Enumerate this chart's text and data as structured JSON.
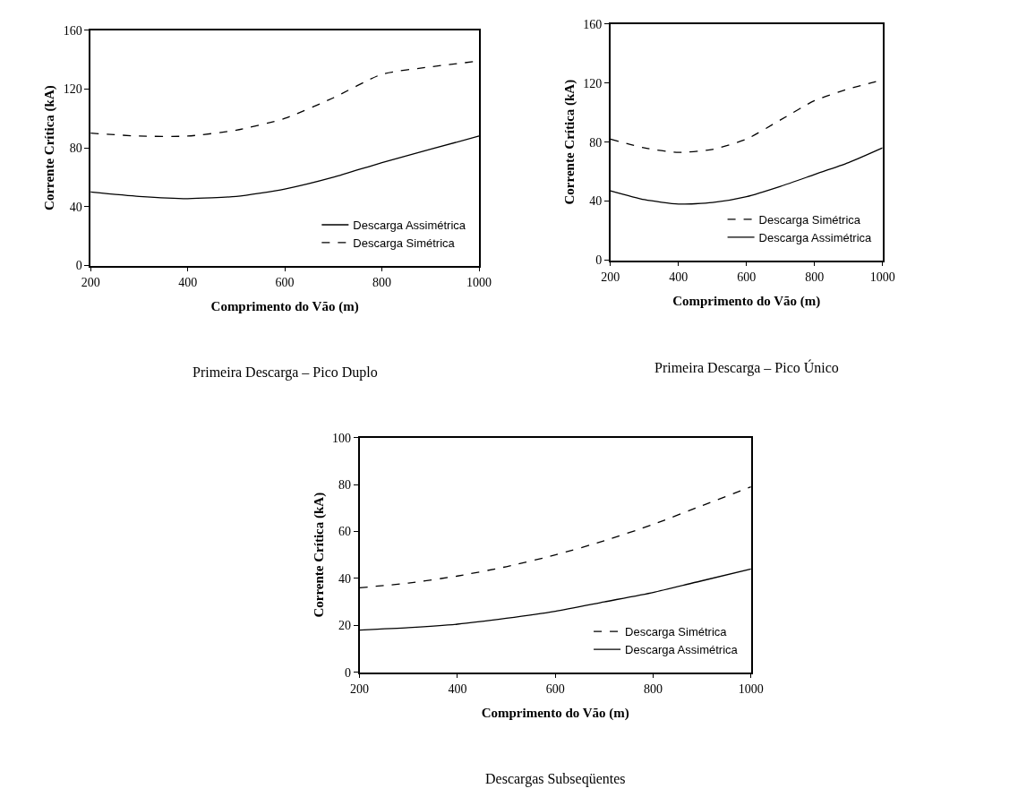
{
  "chart_data": [
    {
      "type": "line",
      "xlabel": "Comprimento do Vão (m)",
      "ylabel": "Corrente Crítica (kA)",
      "x": [
        200,
        300,
        400,
        500,
        600,
        700,
        800,
        900,
        1000
      ],
      "xlim": [
        200,
        1000
      ],
      "xticks": [
        200,
        400,
        600,
        800,
        1000
      ],
      "ylim": [
        0,
        160
      ],
      "yticks": [
        0,
        40,
        80,
        120,
        160
      ],
      "grid": false,
      "legend": "bottom right",
      "annotations": [
        "Primeira Descarga – Pico Duplo"
      ],
      "series": [
        {
          "name": "Descarga Assimétrica",
          "color": "#000000",
          "line_style": "solid",
          "values": [
            50,
            47,
            45.5,
            47,
            52,
            60,
            70,
            79,
            88
          ]
        },
        {
          "name": "Descarga Simétrica",
          "color": "#000000",
          "line_style": "dashed",
          "values": [
            90,
            88,
            88,
            92,
            100,
            114,
            130,
            135,
            139
          ]
        }
      ]
    },
    {
      "type": "line",
      "xlabel": "Comprimento do Vão (m)",
      "ylabel": "Corrente Crítica (kA)",
      "x": [
        200,
        300,
        400,
        500,
        600,
        700,
        800,
        900,
        1000
      ],
      "xlim": [
        200,
        1000
      ],
      "xticks": [
        200,
        400,
        600,
        800,
        1000
      ],
      "ylim": [
        0,
        160
      ],
      "yticks": [
        0,
        40,
        80,
        120,
        160
      ],
      "grid": false,
      "legend": "bottom right",
      "annotations": [
        "Primeira Descarga – Pico Único"
      ],
      "series": [
        {
          "name": "Descarga Simétrica",
          "color": "#000000",
          "line_style": "dashed",
          "values": [
            82,
            76,
            73,
            75,
            82,
            95,
            108,
            116,
            122
          ]
        },
        {
          "name": "Descarga Assimétrica",
          "color": "#000000",
          "line_style": "solid",
          "values": [
            47,
            41,
            38,
            39,
            43,
            50,
            58,
            66,
            76
          ]
        }
      ]
    },
    {
      "type": "line",
      "xlabel": "Comprimento do Vão (m)",
      "ylabel": "Corrente Crítica (kA)",
      "x": [
        200,
        300,
        400,
        500,
        600,
        700,
        800,
        900,
        1000
      ],
      "xlim": [
        200,
        1000
      ],
      "xticks": [
        200,
        400,
        600,
        800,
        1000
      ],
      "ylim": [
        0,
        100
      ],
      "yticks": [
        0,
        20,
        40,
        60,
        80,
        100
      ],
      "grid": false,
      "legend": "bottom right",
      "annotations": [
        "Descargas Subseqüentes"
      ],
      "series": [
        {
          "name": "Descarga Simétrica",
          "color": "#000000",
          "line_style": "dashed",
          "values": [
            36,
            38,
            41,
            45,
            50,
            56,
            63,
            71,
            79
          ]
        },
        {
          "name": "Descarga Assimétrica",
          "color": "#000000",
          "line_style": "solid",
          "values": [
            18,
            19,
            20.5,
            23,
            26,
            30,
            34,
            39,
            44
          ]
        }
      ]
    }
  ]
}
